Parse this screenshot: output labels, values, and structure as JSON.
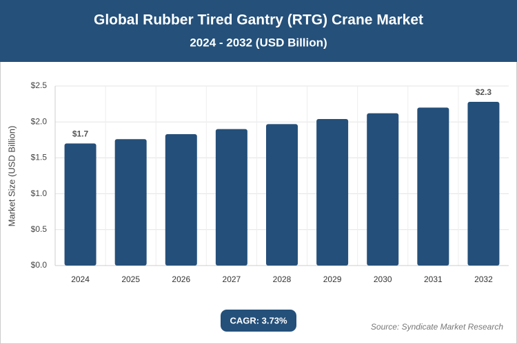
{
  "chart_data": {
    "type": "bar",
    "title": "Global Rubber Tired Gantry (RTG) Crane Market",
    "subtitle": "2024 - 2032 (USD Billion)",
    "y_label": "Market Size (USD Billion)",
    "categories": [
      "2024",
      "2025",
      "2026",
      "2027",
      "2028",
      "2029",
      "2030",
      "2031",
      "2032"
    ],
    "values": [
      1.7,
      1.76,
      1.83,
      1.9,
      1.97,
      2.04,
      2.12,
      2.2,
      2.28
    ],
    "value_labels": [
      "$1.7",
      null,
      null,
      null,
      null,
      null,
      null,
      null,
      "$2.3"
    ],
    "color": "#244f7a",
    "ylim": [
      0,
      2.5
    ],
    "yticks": [
      {
        "value": 0,
        "label": "$0.0"
      },
      {
        "value": 0.5,
        "label": "$0.5"
      },
      {
        "value": 1.0,
        "label": "$1.0"
      },
      {
        "value": 1.5,
        "label": "$1.5"
      },
      {
        "value": 2.0,
        "label": "$2.0"
      },
      {
        "value": 2.5,
        "label": "$2.5"
      }
    ],
    "grid": true,
    "cagr": "CAGR: 3.73%",
    "source": "Source: Syndicate Market Research"
  }
}
